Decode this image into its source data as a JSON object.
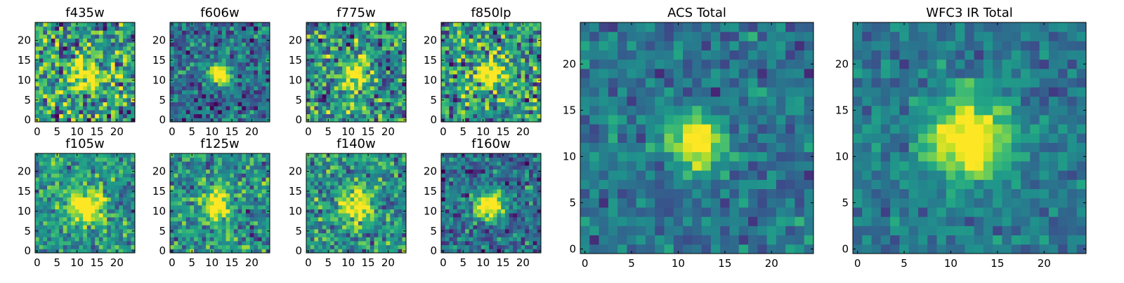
{
  "chart_data": [
    {
      "type": "heatmap",
      "title": "f435w",
      "extent": [
        0,
        24
      ],
      "xticks": [
        0,
        5,
        10,
        15,
        20
      ],
      "yticks": [
        0,
        5,
        10,
        15,
        20
      ],
      "colormap": "viridis",
      "source_center": [
        11.5,
        11.5
      ],
      "peak_width": 2.6,
      "noise": 0.85,
      "background": 0.55
    },
    {
      "type": "heatmap",
      "title": "f606w",
      "extent": [
        0,
        24
      ],
      "xticks": [
        0,
        5,
        10,
        15,
        20
      ],
      "yticks": [
        0,
        5,
        10,
        15,
        20
      ],
      "colormap": "viridis",
      "source_center": [
        12,
        11.5
      ],
      "peak_width": 2.0,
      "noise": 0.55,
      "background": 0.35
    },
    {
      "type": "heatmap",
      "title": "f775w",
      "extent": [
        0,
        24
      ],
      "xticks": [
        0,
        5,
        10,
        15,
        20
      ],
      "yticks": [
        0,
        5,
        10,
        15,
        20
      ],
      "colormap": "viridis",
      "source_center": [
        11.5,
        11.5
      ],
      "peak_width": 2.2,
      "noise": 0.8,
      "background": 0.5
    },
    {
      "type": "heatmap",
      "title": "f850lp",
      "extent": [
        0,
        24
      ],
      "xticks": [
        0,
        5,
        10,
        15,
        20
      ],
      "yticks": [
        0,
        5,
        10,
        15,
        20
      ],
      "colormap": "viridis",
      "source_center": [
        11.5,
        11.5
      ],
      "peak_width": 2.2,
      "noise": 0.85,
      "background": 0.55
    },
    {
      "type": "heatmap",
      "title": "f105w",
      "extent": [
        0,
        24
      ],
      "xticks": [
        0,
        5,
        10,
        15,
        20
      ],
      "yticks": [
        0,
        5,
        10,
        15,
        20
      ],
      "colormap": "viridis",
      "source_center": [
        12,
        11.5
      ],
      "peak_width": 3.0,
      "noise": 0.55,
      "background": 0.5
    },
    {
      "type": "heatmap",
      "title": "f125w",
      "extent": [
        0,
        24
      ],
      "xticks": [
        0,
        5,
        10,
        15,
        20
      ],
      "yticks": [
        0,
        5,
        10,
        15,
        20
      ],
      "colormap": "viridis",
      "source_center": [
        11.5,
        11.5
      ],
      "peak_width": 2.6,
      "noise": 0.6,
      "background": 0.5
    },
    {
      "type": "heatmap",
      "title": "f140w",
      "extent": [
        0,
        24
      ],
      "xticks": [
        0,
        5,
        10,
        15,
        20
      ],
      "yticks": [
        0,
        5,
        10,
        15,
        20
      ],
      "colormap": "viridis",
      "source_center": [
        12,
        11.5
      ],
      "peak_width": 2.8,
      "noise": 0.6,
      "background": 0.5
    },
    {
      "type": "heatmap",
      "title": "f160w",
      "extent": [
        0,
        24
      ],
      "xticks": [
        0,
        5,
        10,
        15,
        20
      ],
      "yticks": [
        0,
        5,
        10,
        15,
        20
      ],
      "colormap": "viridis",
      "source_center": [
        11.5,
        11.5
      ],
      "peak_width": 2.6,
      "noise": 0.55,
      "background": 0.35
    },
    {
      "type": "heatmap",
      "title": "ACS Total",
      "extent": [
        0,
        24
      ],
      "xticks": [
        0,
        5,
        10,
        15,
        20
      ],
      "yticks": [
        0,
        5,
        10,
        15,
        20
      ],
      "colormap": "viridis",
      "source_center": [
        12,
        11.5
      ],
      "peak_width": 2.0,
      "noise": 0.4,
      "background": 0.38
    },
    {
      "type": "heatmap",
      "title": "WFC3 IR Total",
      "extent": [
        0,
        24
      ],
      "xticks": [
        0,
        5,
        10,
        15,
        20
      ],
      "yticks": [
        0,
        5,
        10,
        15,
        20
      ],
      "colormap": "viridis",
      "source_center": [
        12,
        12
      ],
      "peak_width": 3.0,
      "noise": 0.35,
      "background": 0.4
    }
  ]
}
